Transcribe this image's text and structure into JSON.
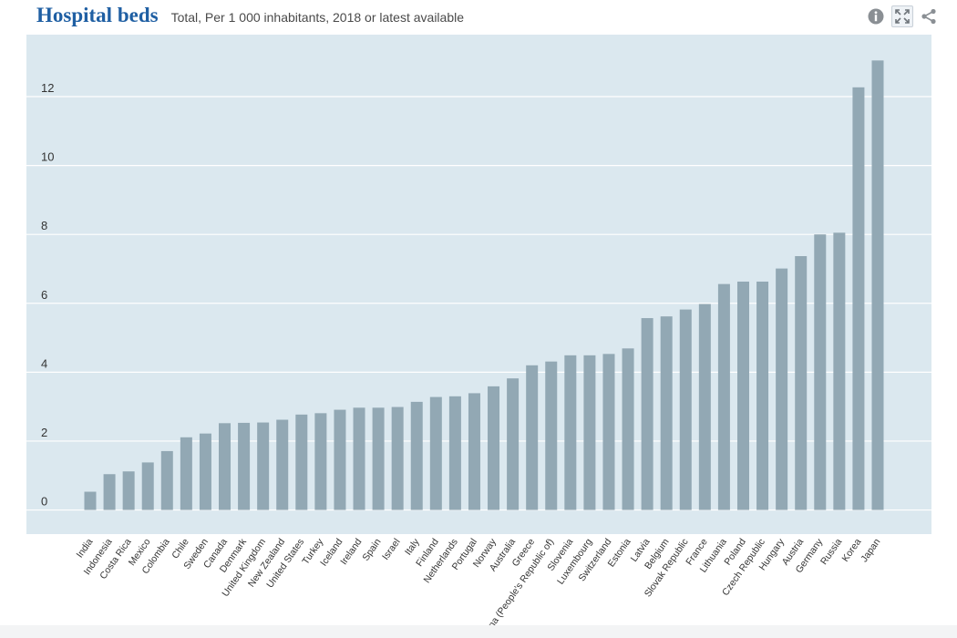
{
  "header": {
    "title": "Hospital beds",
    "subtitle": "Total, Per 1 000 inhabitants, 2018 or latest available"
  },
  "toolbar": {
    "info_icon": "info-icon",
    "fullscreen_icon": "fullscreen-icon",
    "share_icon": "share-icon"
  },
  "colors": {
    "title": "#1f5fa3",
    "plot_background": "#dbe8ef",
    "bar": "#92a8b4",
    "gridline": "#ffffff",
    "icon": "#8a8f94"
  },
  "chart_data": {
    "type": "bar",
    "title": "Hospital beds",
    "subtitle": "Total, Per 1 000 inhabitants, 2018 or latest available",
    "xlabel": "",
    "ylabel": "",
    "ylim": [
      -0.7,
      13.8
    ],
    "yticks": [
      0,
      2,
      4,
      6,
      8,
      10,
      12
    ],
    "grid": true,
    "categories": [
      "India",
      "Indonesia",
      "Costa Rica",
      "Mexico",
      "Colombia",
      "Chile",
      "Sweden",
      "Canada",
      "Denmark",
      "United Kingdom",
      "New Zealand",
      "United States",
      "Turkey",
      "Iceland",
      "Ireland",
      "Spain",
      "Israel",
      "Italy",
      "Finland",
      "Netherlands",
      "Portugal",
      "Norway",
      "Australia",
      "Greece",
      "China (People's Republic of)",
      "Slovenia",
      "Luxembourg",
      "Switzerland",
      "Estonia",
      "Latvia",
      "Belgium",
      "Slovak Republic",
      "France",
      "Lithuania",
      "Poland",
      "Czech Republic",
      "Hungary",
      "Austria",
      "Germany",
      "Russia",
      "Korea",
      "Japan"
    ],
    "values": [
      0.53,
      1.04,
      1.12,
      1.38,
      1.71,
      2.11,
      2.22,
      2.52,
      2.53,
      2.54,
      2.62,
      2.77,
      2.81,
      2.91,
      2.97,
      2.97,
      2.99,
      3.14,
      3.28,
      3.3,
      3.39,
      3.59,
      3.82,
      4.2,
      4.31,
      4.49,
      4.49,
      4.53,
      4.69,
      5.57,
      5.62,
      5.82,
      5.98,
      6.56,
      6.63,
      6.63,
      7.01,
      7.37,
      8.0,
      8.05,
      12.27,
      13.05
    ]
  }
}
